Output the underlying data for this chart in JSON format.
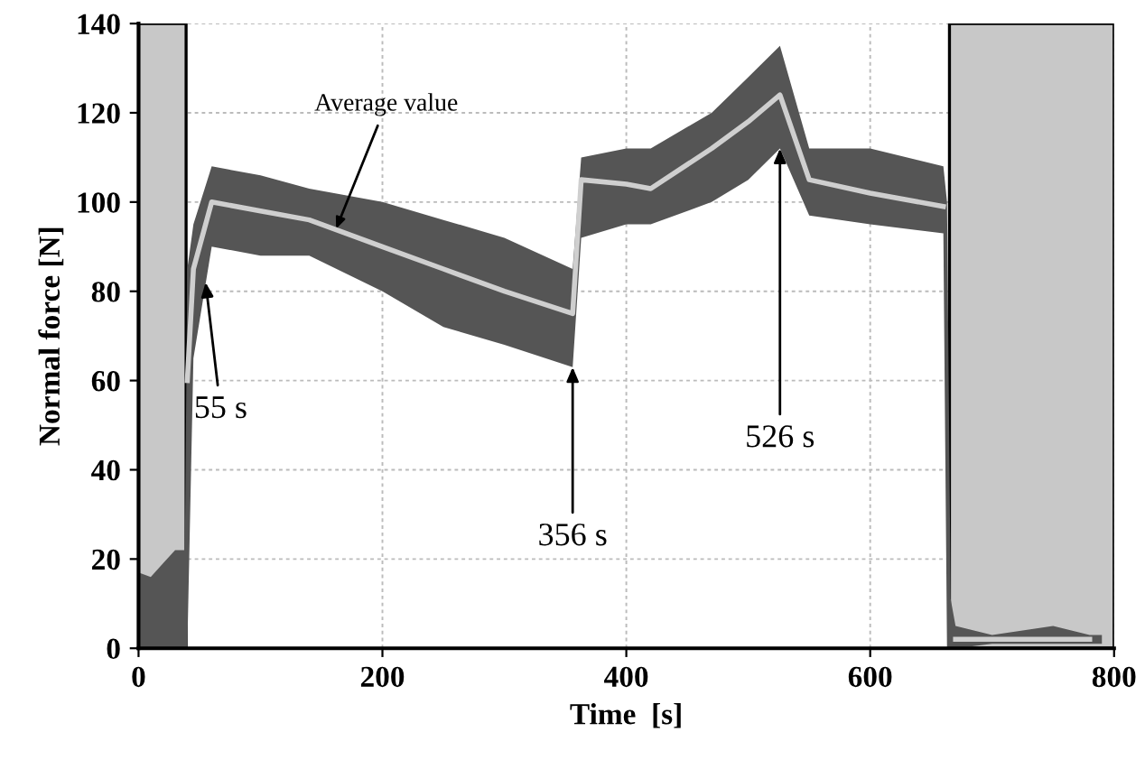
{
  "chart_data": {
    "type": "line",
    "xlabel": "Time  [s]",
    "ylabel": "Normal force [N]",
    "xlim": [
      0,
      800
    ],
    "ylim": [
      0,
      140
    ],
    "xticks": [
      0,
      200,
      400,
      600,
      800
    ],
    "yticks": [
      0,
      20,
      40,
      60,
      80,
      100,
      120,
      140
    ],
    "grid": true,
    "legend": false,
    "series": [
      {
        "color": "#cfcfcf",
        "x": [
          0,
          10,
          20,
          30,
          38,
          40,
          45,
          60,
          100,
          140,
          200,
          250,
          300,
          356,
          363,
          400,
          420,
          470,
          500,
          526,
          550,
          600,
          660,
          663,
          666,
          670,
          700,
          750,
          780,
          790
        ],
        "values": [
          null,
          null,
          null,
          null,
          null,
          60,
          85,
          100,
          98,
          96,
          90,
          85,
          80,
          75,
          105,
          104,
          103,
          112,
          118,
          124,
          105,
          102,
          99,
          null,
          null,
          2,
          2,
          2,
          2,
          null
        ],
        "lower": [
          0,
          0,
          0,
          0,
          0,
          0,
          65,
          90,
          88,
          88,
          80,
          72,
          68,
          63,
          92,
          95,
          95,
          100,
          105,
          112,
          97,
          95,
          93,
          0,
          0,
          0,
          1,
          1,
          1,
          1
        ],
        "upper": [
          17,
          16,
          19,
          22,
          22,
          85,
          95,
          108,
          106,
          103,
          100,
          96,
          92,
          85,
          110,
          112,
          112,
          120,
          128,
          135,
          112,
          112,
          108,
          100,
          11,
          5,
          3,
          5,
          3,
          3
        ]
      }
    ],
    "bands": [
      {
        "axis": "x",
        "from": 0,
        "to": 39,
        "color": "#c8c8c8"
      },
      {
        "axis": "x",
        "from": 665,
        "to": 800,
        "color": "#c8c8c8"
      }
    ],
    "annotations": [
      {
        "text": "Average value",
        "x": 162,
        "y": 94
      },
      {
        "text": "55 s",
        "x": 55,
        "y": 82
      },
      {
        "text": "356 s",
        "x": 356,
        "y": 63
      },
      {
        "text": "526 s",
        "x": 526,
        "y": 112
      }
    ]
  }
}
